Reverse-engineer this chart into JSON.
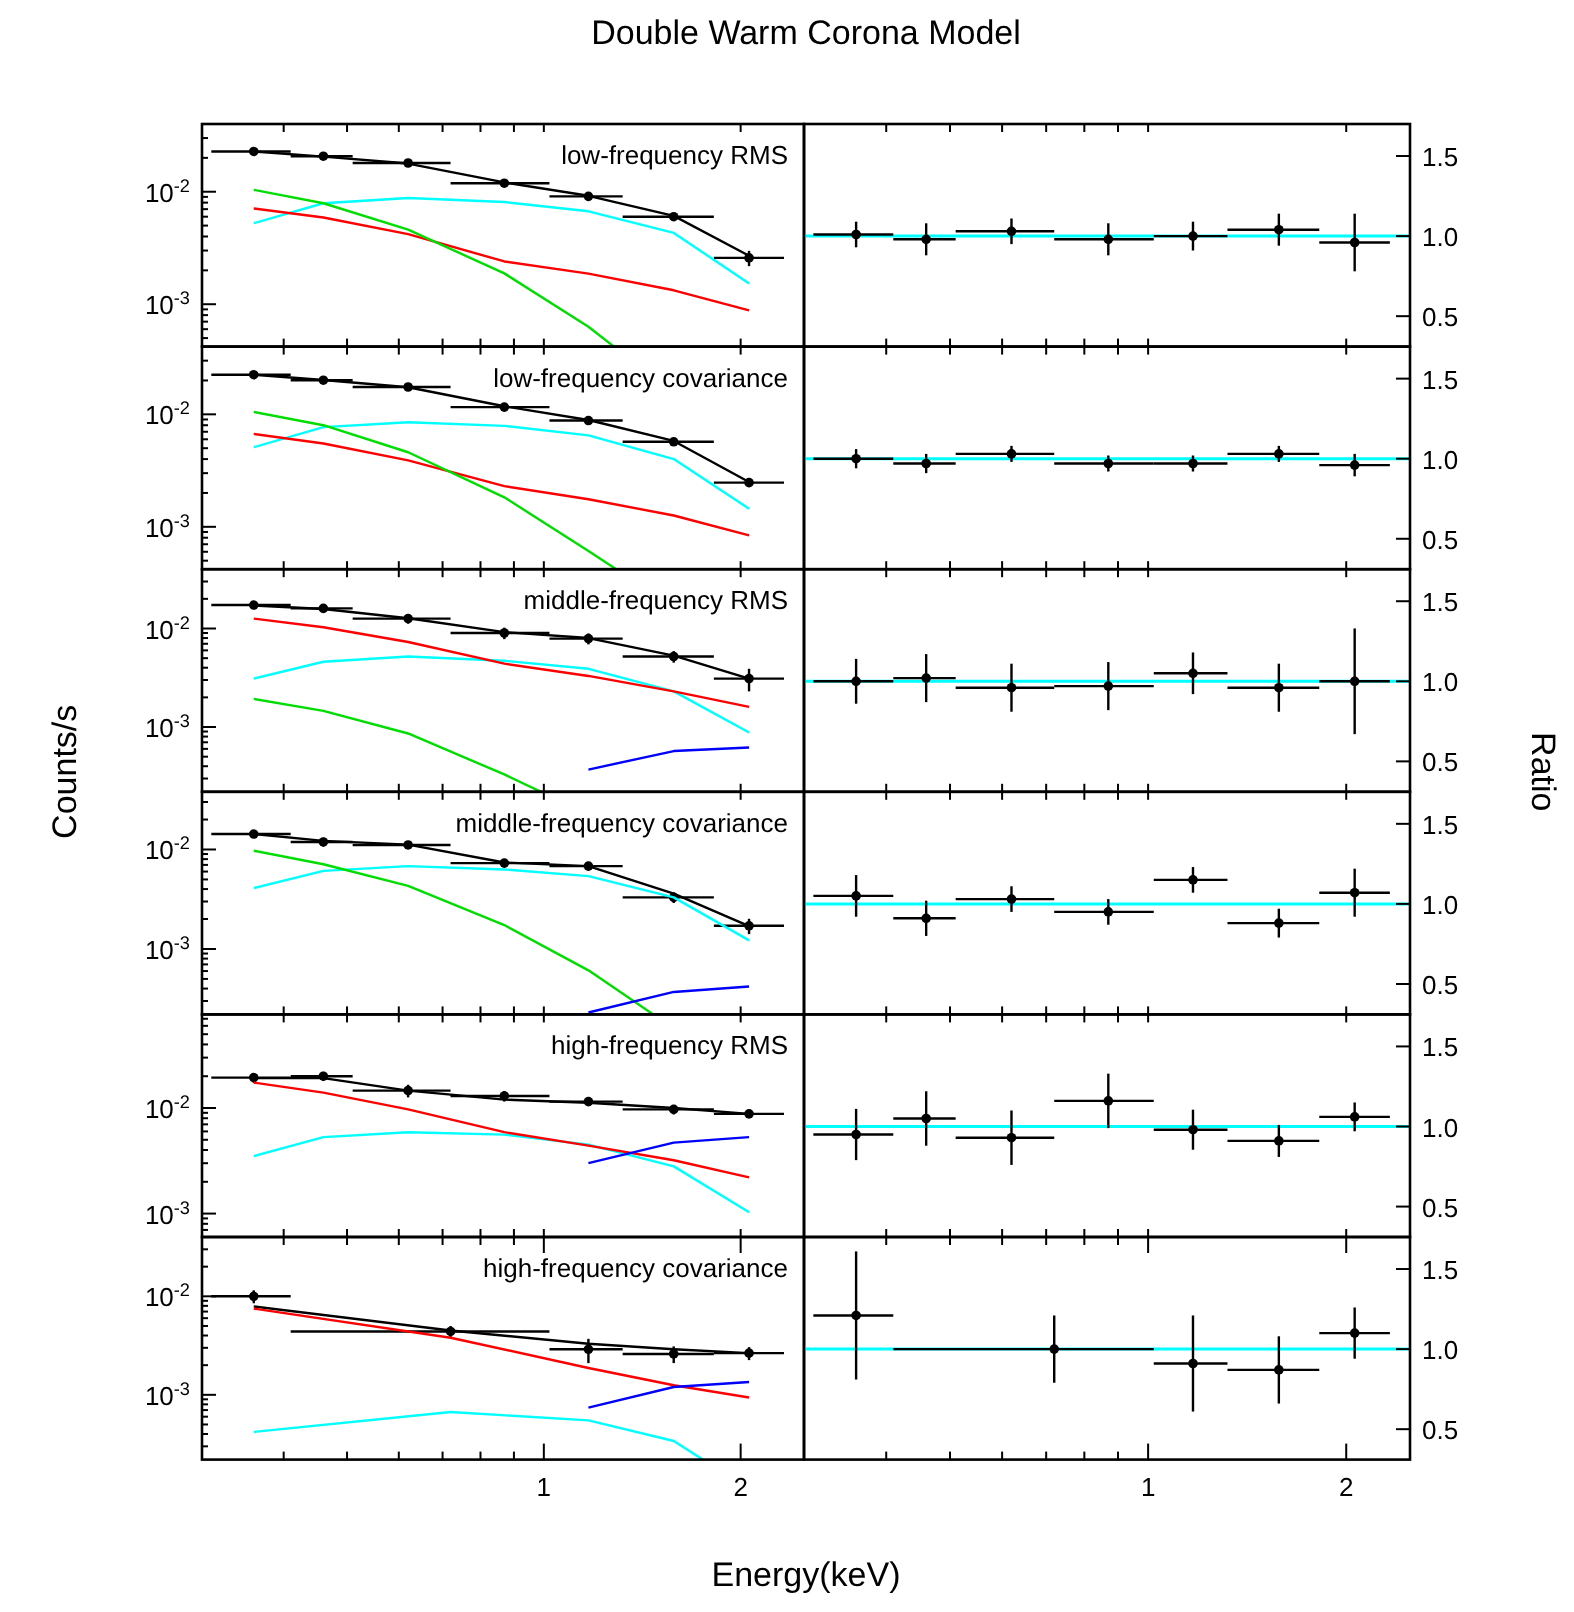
{
  "chart_data": [
    {
      "type": "line",
      "title": "Double Warm Corona Model",
      "annotations": [
        "low-frequency RMS"
      ],
      "log": "xy",
      "tick_labels": "y",
      "x": [
        0.36,
        0.46,
        0.62,
        0.87,
        1.17,
        1.58,
        2.06
      ],
      "xlim": [
        0.3,
        2.5
      ],
      "xticks": [
        {
          "value": 0.4,
          "label": null
        },
        {
          "value": 0.5,
          "label": null
        },
        {
          "value": 0.6,
          "label": null
        },
        {
          "value": 0.7,
          "label": null
        },
        {
          "value": 0.8,
          "label": null
        },
        {
          "value": 0.9,
          "label": null
        },
        {
          "value": 1,
          "label": null
        },
        {
          "value": 2,
          "label": null
        }
      ],
      "ylim": [
        0.00042,
        0.04
      ],
      "yticks": [
        {
          "value": 0.0005,
          "label": null
        },
        {
          "value": 0.0006,
          "label": null
        },
        {
          "value": 0.0007,
          "label": null
        },
        {
          "value": 0.0008,
          "label": null
        },
        {
          "value": 0.0009,
          "label": null
        },
        {
          "value": 0.001,
          "label": "10$^{-3}$"
        },
        {
          "value": 0.002,
          "label": null
        },
        {
          "value": 0.003,
          "label": null
        },
        {
          "value": 0.004,
          "label": null
        },
        {
          "value": 0.005,
          "label": null
        },
        {
          "value": 0.006,
          "label": null
        },
        {
          "value": 0.007,
          "label": null
        },
        {
          "value": 0.008,
          "label": null
        },
        {
          "value": 0.009,
          "label": null
        },
        {
          "value": 0.01,
          "label": "10$^{-2}$"
        },
        {
          "value": 0.02,
          "label": null
        },
        {
          "value": 0.03,
          "label": null
        }
      ],
      "series": [
        {
          "type": "scatter",
          "marker": "circle",
          "color": "#000000",
          "values": [
            0.0228,
            0.0207,
            0.018,
            0.0119,
            0.0091,
            0.006,
            0.00258
          ],
          "errors": [
            0.001,
            0.001,
            0.0008,
            0.0006,
            0.0006,
            0.0004,
            0.0004
          ],
          "xerrors": [
            [
              0.31,
              0.41
            ],
            [
              0.41,
              0.51
            ],
            [
              0.51,
              0.72
            ],
            [
              0.72,
              1.02
            ],
            [
              1.02,
              1.32
            ],
            [
              1.32,
              1.82
            ],
            [
              1.82,
              2.33
            ]
          ]
        },
        {
          "type": "line",
          "color": "#000000",
          "values": [
            0.0228,
            0.0205,
            0.0178,
            0.0121,
            0.0092,
            0.0061,
            0.0027
          ]
        },
        {
          "type": "line",
          "color": "#00ffff",
          "values": [
            0.00525,
            0.0079,
            0.0088,
            0.0081,
            0.0067,
            0.0043,
            0.00153
          ]
        },
        {
          "type": "line",
          "color": "#ff0000",
          "values": [
            0.0071,
            0.0059,
            0.0042,
            0.0024,
            0.00187,
            0.00133,
            0.00088
          ]
        },
        {
          "type": "line",
          "color": "#00dd00",
          "x": [
            0.36,
            0.46,
            0.62,
            0.87,
            1.17,
            1.28
          ],
          "values": [
            0.0104,
            0.0079,
            0.0046,
            0.00188,
            0.00063,
            0.00042
          ]
        }
      ]
    },
    {
      "type": "line",
      "log": "x",
      "tick_labels": "y",
      "x": [
        0.36,
        0.46,
        0.62,
        0.87,
        1.17,
        1.58,
        2.06
      ],
      "xlim": [
        0.3,
        2.5
      ],
      "xticks": [
        {
          "value": 0.4,
          "label": null
        },
        {
          "value": 0.5,
          "label": null
        },
        {
          "value": 0.6,
          "label": null
        },
        {
          "value": 0.7,
          "label": null
        },
        {
          "value": 0.8,
          "label": null
        },
        {
          "value": 0.9,
          "label": null
        },
        {
          "value": 1,
          "label": null
        },
        {
          "value": 2,
          "label": null
        }
      ],
      "ylim": [
        0.31,
        1.7
      ],
      "yticks": [
        {
          "value": 0.5,
          "label": "0.5"
        },
        {
          "value": 1,
          "label": "1.0"
        },
        {
          "value": 1.5,
          "label": "1.5"
        }
      ],
      "ref_lines": [
        {
          "axis": "y",
          "value": 1,
          "color": "#00ffff"
        }
      ],
      "series": [
        {
          "type": "scatter",
          "marker": "circle",
          "color": "#000000",
          "values": [
            1.01,
            0.98,
            1.03,
            0.98,
            1.0,
            1.04,
            0.96
          ],
          "errors": [
            0.08,
            0.1,
            0.08,
            0.1,
            0.09,
            0.1,
            0.18
          ],
          "xerrors": [
            [
              0.31,
              0.41
            ],
            [
              0.41,
              0.51
            ],
            [
              0.51,
              0.72
            ],
            [
              0.72,
              1.02
            ],
            [
              1.02,
              1.32
            ],
            [
              1.32,
              1.82
            ],
            [
              1.82,
              2.33
            ]
          ]
        }
      ]
    },
    {
      "type": "line",
      "annotations": [
        "low-frequency covariance"
      ],
      "log": "xy",
      "tick_labels": "y",
      "x": [
        0.36,
        0.46,
        0.62,
        0.87,
        1.17,
        1.58,
        2.06
      ],
      "xlim": [
        0.3,
        2.5
      ],
      "xticks": [
        {
          "value": 0.4,
          "label": null
        },
        {
          "value": 0.5,
          "label": null
        },
        {
          "value": 0.6,
          "label": null
        },
        {
          "value": 0.7,
          "label": null
        },
        {
          "value": 0.8,
          "label": null
        },
        {
          "value": 0.9,
          "label": null
        },
        {
          "value": 1,
          "label": null
        },
        {
          "value": 2,
          "label": null
        }
      ],
      "ylim": [
        0.00042,
        0.04
      ],
      "yticks": [
        {
          "value": 0.0005,
          "label": null
        },
        {
          "value": 0.0006,
          "label": null
        },
        {
          "value": 0.0007,
          "label": null
        },
        {
          "value": 0.0008,
          "label": null
        },
        {
          "value": 0.0009,
          "label": null
        },
        {
          "value": 0.001,
          "label": "10$^{-3}$"
        },
        {
          "value": 0.002,
          "label": null
        },
        {
          "value": 0.003,
          "label": null
        },
        {
          "value": 0.004,
          "label": null
        },
        {
          "value": 0.005,
          "label": null
        },
        {
          "value": 0.006,
          "label": null
        },
        {
          "value": 0.007,
          "label": null
        },
        {
          "value": 0.008,
          "label": null
        },
        {
          "value": 0.009,
          "label": null
        },
        {
          "value": 0.01,
          "label": "10$^{-2}$"
        },
        {
          "value": 0.02,
          "label": null
        },
        {
          "value": 0.03,
          "label": null
        }
      ],
      "series": [
        {
          "type": "scatter",
          "marker": "circle",
          "color": "#000000",
          "values": [
            0.0225,
            0.0201,
            0.0175,
            0.0116,
            0.0088,
            0.0057,
            0.00247
          ],
          "errors": [
            0.001,
            0.0009,
            0.0008,
            0.0006,
            0.0005,
            0.0004,
            0.0002
          ],
          "xerrors": [
            [
              0.31,
              0.41
            ],
            [
              0.41,
              0.51
            ],
            [
              0.51,
              0.72
            ],
            [
              0.72,
              1.02
            ],
            [
              1.02,
              1.32
            ],
            [
              1.32,
              1.82
            ],
            [
              1.82,
              2.33
            ]
          ]
        },
        {
          "type": "line",
          "color": "#000000",
          "values": [
            0.0225,
            0.0202,
            0.0174,
            0.0118,
            0.0089,
            0.0058,
            0.0025
          ]
        },
        {
          "type": "line",
          "color": "#00ffff",
          "values": [
            0.0051,
            0.0077,
            0.0085,
            0.0079,
            0.0065,
            0.004,
            0.00145
          ]
        },
        {
          "type": "line",
          "color": "#ff0000",
          "values": [
            0.0067,
            0.0055,
            0.0039,
            0.0023,
            0.00176,
            0.00126,
            0.00084
          ]
        },
        {
          "type": "line",
          "color": "#00dd00",
          "x": [
            0.36,
            0.46,
            0.62,
            0.87,
            1.17,
            1.29
          ],
          "values": [
            0.0105,
            0.008,
            0.0046,
            0.00183,
            0.00061,
            0.00042
          ]
        }
      ]
    },
    {
      "type": "line",
      "log": "x",
      "tick_labels": "y",
      "x": [
        0.36,
        0.46,
        0.62,
        0.87,
        1.17,
        1.58,
        2.06
      ],
      "xlim": [
        0.3,
        2.5
      ],
      "xticks": [
        {
          "value": 0.4,
          "label": null
        },
        {
          "value": 0.5,
          "label": null
        },
        {
          "value": 0.6,
          "label": null
        },
        {
          "value": 0.7,
          "label": null
        },
        {
          "value": 0.8,
          "label": null
        },
        {
          "value": 0.9,
          "label": null
        },
        {
          "value": 1,
          "label": null
        },
        {
          "value": 2,
          "label": null
        }
      ],
      "ylim": [
        0.31,
        1.7
      ],
      "yticks": [
        {
          "value": 0.5,
          "label": "0.5"
        },
        {
          "value": 1,
          "label": "1.0"
        },
        {
          "value": 1.5,
          "label": "1.5"
        }
      ],
      "ref_lines": [
        {
          "axis": "y",
          "value": 1,
          "color": "#00ffff"
        }
      ],
      "series": [
        {
          "type": "scatter",
          "marker": "circle",
          "color": "#000000",
          "values": [
            1.0,
            0.97,
            1.03,
            0.97,
            0.97,
            1.03,
            0.96
          ],
          "errors": [
            0.06,
            0.06,
            0.05,
            0.05,
            0.05,
            0.05,
            0.07
          ],
          "xerrors": [
            [
              0.31,
              0.41
            ],
            [
              0.41,
              0.51
            ],
            [
              0.51,
              0.72
            ],
            [
              0.72,
              1.02
            ],
            [
              1.02,
              1.32
            ],
            [
              1.32,
              1.82
            ],
            [
              1.82,
              2.33
            ]
          ]
        }
      ]
    },
    {
      "type": "line",
      "ylabel": "Counts/s",
      "annotations": [
        "middle-frequency RMS"
      ],
      "log": "xy",
      "tick_labels": "y",
      "x": [
        0.36,
        0.46,
        0.62,
        0.87,
        1.17,
        1.58,
        2.06
      ],
      "xlim": [
        0.3,
        2.5
      ],
      "xticks": [
        {
          "value": 0.4,
          "label": null
        },
        {
          "value": 0.5,
          "label": null
        },
        {
          "value": 0.6,
          "label": null
        },
        {
          "value": 0.7,
          "label": null
        },
        {
          "value": 0.8,
          "label": null
        },
        {
          "value": 0.9,
          "label": null
        },
        {
          "value": 1,
          "label": null
        },
        {
          "value": 2,
          "label": null
        }
      ],
      "ylim": [
        0.00022,
        0.04
      ],
      "yticks": [
        {
          "value": 0.0003,
          "label": null
        },
        {
          "value": 0.0004,
          "label": null
        },
        {
          "value": 0.0005,
          "label": null
        },
        {
          "value": 0.0006,
          "label": null
        },
        {
          "value": 0.0007,
          "label": null
        },
        {
          "value": 0.0008,
          "label": null
        },
        {
          "value": 0.0009,
          "label": null
        },
        {
          "value": 0.001,
          "label": "10$^{-3}$"
        },
        {
          "value": 0.002,
          "label": null
        },
        {
          "value": 0.003,
          "label": null
        },
        {
          "value": 0.004,
          "label": null
        },
        {
          "value": 0.005,
          "label": null
        },
        {
          "value": 0.006,
          "label": null
        },
        {
          "value": 0.007,
          "label": null
        },
        {
          "value": 0.008,
          "label": null
        },
        {
          "value": 0.009,
          "label": null
        },
        {
          "value": 0.01,
          "label": "10$^{-2}$"
        },
        {
          "value": 0.02,
          "label": null
        },
        {
          "value": 0.03,
          "label": null
        }
      ],
      "series": [
        {
          "type": "scatter",
          "marker": "circle",
          "color": "#000000",
          "values": [
            0.0173,
            0.016,
            0.0126,
            0.009,
            0.0079,
            0.0052,
            0.0031
          ],
          "errors": [
            0.0015,
            0.0015,
            0.0014,
            0.0012,
            0.001,
            0.0007,
            0.0008
          ],
          "xerrors": [
            [
              0.31,
              0.41
            ],
            [
              0.41,
              0.51
            ],
            [
              0.51,
              0.72
            ],
            [
              0.72,
              1.02
            ],
            [
              1.02,
              1.32
            ],
            [
              1.32,
              1.82
            ],
            [
              1.82,
              2.33
            ]
          ]
        },
        {
          "type": "line",
          "color": "#000000",
          "values": [
            0.0171,
            0.0158,
            0.0127,
            0.0092,
            0.008,
            0.0053,
            0.0031
          ]
        },
        {
          "type": "line",
          "color": "#00ffff",
          "values": [
            0.0031,
            0.0046,
            0.0052,
            0.0047,
            0.0039,
            0.0023,
            0.00088
          ]
        },
        {
          "type": "line",
          "color": "#ff0000",
          "values": [
            0.0126,
            0.0103,
            0.0073,
            0.0044,
            0.0033,
            0.0023,
            0.0016
          ]
        },
        {
          "type": "line",
          "color": "#00dd00",
          "x": [
            0.36,
            0.46,
            0.62,
            0.87,
            0.99
          ],
          "values": [
            0.00193,
            0.00146,
            0.00086,
            0.00033,
            0.00022
          ]
        },
        {
          "type": "line",
          "color": "#0000ff",
          "x": [
            1.17,
            1.58,
            2.06
          ],
          "values": [
            0.00037,
            0.00057,
            0.00062
          ]
        }
      ]
    },
    {
      "type": "line",
      "log": "x",
      "tick_labels": "y",
      "x": [
        0.36,
        0.46,
        0.62,
        0.87,
        1.17,
        1.58,
        2.06
      ],
      "xlim": [
        0.3,
        2.5
      ],
      "xticks": [
        {
          "value": 0.4,
          "label": null
        },
        {
          "value": 0.5,
          "label": null
        },
        {
          "value": 0.6,
          "label": null
        },
        {
          "value": 0.7,
          "label": null
        },
        {
          "value": 0.8,
          "label": null
        },
        {
          "value": 0.9,
          "label": null
        },
        {
          "value": 1,
          "label": null
        },
        {
          "value": 2,
          "label": null
        }
      ],
      "ylim": [
        0.31,
        1.7
      ],
      "yticks": [
        {
          "value": 0.5,
          "label": "0.5"
        },
        {
          "value": 1,
          "label": "1.0"
        },
        {
          "value": 1.5,
          "label": "1.5"
        }
      ],
      "ylabel": "Ratio",
      "ref_lines": [
        {
          "axis": "y",
          "value": 1,
          "color": "#00ffff"
        }
      ],
      "series": [
        {
          "type": "scatter",
          "marker": "circle",
          "color": "#000000",
          "values": [
            1.0,
            1.02,
            0.96,
            0.97,
            1.05,
            0.96,
            1.0
          ],
          "errors": [
            0.14,
            0.15,
            0.15,
            0.15,
            0.13,
            0.15,
            0.33
          ],
          "xerrors": [
            [
              0.31,
              0.41
            ],
            [
              0.41,
              0.51
            ],
            [
              0.51,
              0.72
            ],
            [
              0.72,
              1.02
            ],
            [
              1.02,
              1.32
            ],
            [
              1.32,
              1.82
            ],
            [
              1.82,
              2.33
            ]
          ]
        }
      ]
    },
    {
      "type": "line",
      "annotations": [
        "middle-frequency covariance"
      ],
      "log": "xy",
      "tick_labels": "y",
      "x": [
        0.36,
        0.46,
        0.62,
        0.87,
        1.17,
        1.58,
        2.06
      ],
      "xlim": [
        0.3,
        2.5
      ],
      "xticks": [
        {
          "value": 0.4,
          "label": null
        },
        {
          "value": 0.5,
          "label": null
        },
        {
          "value": 0.6,
          "label": null
        },
        {
          "value": 0.7,
          "label": null
        },
        {
          "value": 0.8,
          "label": null
        },
        {
          "value": 0.9,
          "label": null
        },
        {
          "value": 1,
          "label": null
        },
        {
          "value": 2,
          "label": null
        }
      ],
      "ylim": [
        0.00022,
        0.038
      ],
      "yticks": [
        {
          "value": 0.0003,
          "label": null
        },
        {
          "value": 0.0004,
          "label": null
        },
        {
          "value": 0.0005,
          "label": null
        },
        {
          "value": 0.0006,
          "label": null
        },
        {
          "value": 0.0007,
          "label": null
        },
        {
          "value": 0.0008,
          "label": null
        },
        {
          "value": 0.0009,
          "label": null
        },
        {
          "value": 0.001,
          "label": "10$^{-3}$"
        },
        {
          "value": 0.002,
          "label": null
        },
        {
          "value": 0.003,
          "label": null
        },
        {
          "value": 0.004,
          "label": null
        },
        {
          "value": 0.005,
          "label": null
        },
        {
          "value": 0.006,
          "label": null
        },
        {
          "value": 0.007,
          "label": null
        },
        {
          "value": 0.008,
          "label": null
        },
        {
          "value": 0.009,
          "label": null
        },
        {
          "value": 0.01,
          "label": "10$^{-2}$"
        },
        {
          "value": 0.02,
          "label": null
        },
        {
          "value": 0.03,
          "label": null
        }
      ],
      "series": [
        {
          "type": "scatter",
          "marker": "circle",
          "color": "#000000",
          "values": [
            0.0143,
            0.0119,
            0.0111,
            0.0073,
            0.0068,
            0.0033,
            0.00171
          ],
          "errors": [
            0.0012,
            0.0012,
            0.0008,
            0.0006,
            0.0006,
            0.0004,
            0.0003
          ],
          "xerrors": [
            [
              0.31,
              0.41
            ],
            [
              0.41,
              0.51
            ],
            [
              0.51,
              0.72
            ],
            [
              0.72,
              1.02
            ],
            [
              1.02,
              1.32
            ],
            [
              1.32,
              1.82
            ],
            [
              1.82,
              2.33
            ]
          ]
        },
        {
          "type": "line",
          "color": "#000000",
          "values": [
            0.0143,
            0.0122,
            0.0112,
            0.0074,
            0.0068,
            0.0036,
            0.0017
          ]
        },
        {
          "type": "line",
          "color": "#00ffff",
          "values": [
            0.0041,
            0.0061,
            0.0068,
            0.0063,
            0.0054,
            0.0033,
            0.00122
          ]
        },
        {
          "type": "line",
          "color": "#00dd00",
          "x": [
            0.36,
            0.46,
            0.62,
            0.87,
            1.17,
            1.47
          ],
          "values": [
            0.0097,
            0.0071,
            0.0043,
            0.00174,
            0.00061,
            0.00022
          ]
        },
        {
          "type": "line",
          "color": "#0000ff",
          "x": [
            1.17,
            1.58,
            2.06
          ],
          "values": [
            0.00023,
            0.00037,
            0.00042
          ]
        }
      ]
    },
    {
      "type": "line",
      "log": "x",
      "tick_labels": "y",
      "x": [
        0.36,
        0.46,
        0.62,
        0.87,
        1.17,
        1.58,
        2.06
      ],
      "xlim": [
        0.3,
        2.5
      ],
      "xticks": [
        {
          "value": 0.4,
          "label": null
        },
        {
          "value": 0.5,
          "label": null
        },
        {
          "value": 0.6,
          "label": null
        },
        {
          "value": 0.7,
          "label": null
        },
        {
          "value": 0.8,
          "label": null
        },
        {
          "value": 0.9,
          "label": null
        },
        {
          "value": 1,
          "label": null
        },
        {
          "value": 2,
          "label": null
        }
      ],
      "ylim": [
        0.31,
        1.7
      ],
      "yticks": [
        {
          "value": 0.5,
          "label": "0.5"
        },
        {
          "value": 1,
          "label": "1.0"
        },
        {
          "value": 1.5,
          "label": "1.5"
        }
      ],
      "ref_lines": [
        {
          "axis": "y",
          "value": 1,
          "color": "#00ffff"
        }
      ],
      "series": [
        {
          "type": "scatter",
          "marker": "circle",
          "color": "#000000",
          "values": [
            1.05,
            0.91,
            1.03,
            0.95,
            1.15,
            0.88,
            1.07
          ],
          "errors": [
            0.13,
            0.11,
            0.08,
            0.08,
            0.08,
            0.09,
            0.15
          ],
          "xerrors": [
            [
              0.31,
              0.41
            ],
            [
              0.41,
              0.51
            ],
            [
              0.51,
              0.72
            ],
            [
              0.72,
              1.02
            ],
            [
              1.02,
              1.32
            ],
            [
              1.32,
              1.82
            ],
            [
              1.82,
              2.33
            ]
          ]
        }
      ]
    },
    {
      "type": "line",
      "annotations": [
        "high-frequency RMS"
      ],
      "log": "xy",
      "tick_labels": "y",
      "x": [
        0.36,
        0.46,
        0.62,
        0.87,
        1.17,
        1.58,
        2.06
      ],
      "xlim": [
        0.3,
        2.5
      ],
      "xticks": [
        {
          "value": 0.4,
          "label": null
        },
        {
          "value": 0.5,
          "label": null
        },
        {
          "value": 0.6,
          "label": null
        },
        {
          "value": 0.7,
          "label": null
        },
        {
          "value": 0.8,
          "label": null
        },
        {
          "value": 0.9,
          "label": null
        },
        {
          "value": 1,
          "label": null
        },
        {
          "value": 2,
          "label": null
        }
      ],
      "ylim": [
        0.0006,
        0.077
      ],
      "yticks": [
        {
          "value": 0.0007,
          "label": null
        },
        {
          "value": 0.0008,
          "label": null
        },
        {
          "value": 0.0009,
          "label": null
        },
        {
          "value": 0.001,
          "label": "10$^{-3}$"
        },
        {
          "value": 0.002,
          "label": null
        },
        {
          "value": 0.003,
          "label": null
        },
        {
          "value": 0.004,
          "label": null
        },
        {
          "value": 0.005,
          "label": null
        },
        {
          "value": 0.006,
          "label": null
        },
        {
          "value": 0.007,
          "label": null
        },
        {
          "value": 0.008,
          "label": null
        },
        {
          "value": 0.009,
          "label": null
        },
        {
          "value": 0.01,
          "label": "10$^{-2}$"
        },
        {
          "value": 0.02,
          "label": null
        },
        {
          "value": 0.03,
          "label": null
        },
        {
          "value": 0.04,
          "label": null
        },
        {
          "value": 0.05,
          "label": null
        },
        {
          "value": 0.06,
          "label": null
        },
        {
          "value": 0.07,
          "label": null
        }
      ],
      "series": [
        {
          "type": "scatter",
          "marker": "circle",
          "color": "#000000",
          "values": [
            0.0194,
            0.02,
            0.0146,
            0.013,
            0.0115,
            0.0097,
            0.0088
          ],
          "errors": [
            0.002,
            0.002,
            0.002,
            0.0015,
            0.001,
            0.001,
            0.0006
          ],
          "xerrors": [
            [
              0.31,
              0.41
            ],
            [
              0.41,
              0.51
            ],
            [
              0.51,
              0.72
            ],
            [
              0.72,
              1.02
            ],
            [
              1.02,
              1.32
            ],
            [
              1.32,
              1.82
            ],
            [
              1.82,
              2.33
            ]
          ]
        },
        {
          "type": "line",
          "color": "#000000",
          "values": [
            0.0192,
            0.0192,
            0.0146,
            0.012,
            0.0112,
            0.01,
            0.0088
          ]
        },
        {
          "type": "line",
          "color": "#00ffff",
          "values": [
            0.0035,
            0.0053,
            0.0059,
            0.0056,
            0.0045,
            0.0028,
            0.00103
          ]
        },
        {
          "type": "line",
          "color": "#ff0000",
          "values": [
            0.0174,
            0.014,
            0.0097,
            0.0059,
            0.0044,
            0.0032,
            0.0022
          ]
        },
        {
          "type": "line",
          "color": "#0000ff",
          "x": [
            1.17,
            1.58,
            2.06
          ],
          "values": [
            0.003,
            0.0047,
            0.0053
          ]
        }
      ]
    },
    {
      "type": "line",
      "log": "x",
      "tick_labels": "y",
      "x": [
        0.36,
        0.46,
        0.62,
        0.87,
        1.17,
        1.58,
        2.06
      ],
      "xlim": [
        0.3,
        2.5
      ],
      "xticks": [
        {
          "value": 0.4,
          "label": null
        },
        {
          "value": 0.5,
          "label": null
        },
        {
          "value": 0.6,
          "label": null
        },
        {
          "value": 0.7,
          "label": null
        },
        {
          "value": 0.8,
          "label": null
        },
        {
          "value": 0.9,
          "label": null
        },
        {
          "value": 1,
          "label": null
        },
        {
          "value": 2,
          "label": null
        }
      ],
      "ylim": [
        0.31,
        1.7
      ],
      "yticks": [
        {
          "value": 0.5,
          "label": "0.5"
        },
        {
          "value": 1,
          "label": "1.0"
        },
        {
          "value": 1.5,
          "label": "1.5"
        }
      ],
      "ref_lines": [
        {
          "axis": "y",
          "value": 1,
          "color": "#00ffff"
        }
      ],
      "series": [
        {
          "type": "scatter",
          "marker": "circle",
          "color": "#000000",
          "values": [
            0.95,
            1.05,
            0.93,
            1.16,
            0.98,
            0.91,
            1.06
          ],
          "errors": [
            0.16,
            0.17,
            0.17,
            0.17,
            0.125,
            0.1,
            0.09
          ],
          "xerrors": [
            [
              0.31,
              0.41
            ],
            [
              0.41,
              0.51
            ],
            [
              0.51,
              0.72
            ],
            [
              0.72,
              1.02
            ],
            [
              1.02,
              1.32
            ],
            [
              1.32,
              1.82
            ],
            [
              1.82,
              2.33
            ]
          ]
        }
      ]
    },
    {
      "type": "line",
      "xlabel": "Energy(keV)",
      "annotations": [
        "high-frequency covariance"
      ],
      "log": "xy",
      "x": [
        0.36,
        0.72,
        1.17,
        1.58,
        2.06
      ],
      "xlim": [
        0.3,
        2.5
      ],
      "xticks": [
        {
          "value": 0.4,
          "label": null
        },
        {
          "value": 0.5,
          "label": null
        },
        {
          "value": 0.6,
          "label": null
        },
        {
          "value": 0.7,
          "label": null
        },
        {
          "value": 0.8,
          "label": null
        },
        {
          "value": 0.9,
          "label": null
        },
        {
          "value": 1,
          "label": "1"
        },
        {
          "value": 2,
          "label": "2"
        }
      ],
      "ylim": [
        0.00022,
        0.04
      ],
      "yticks": [
        {
          "value": 0.0003,
          "label": null
        },
        {
          "value": 0.0004,
          "label": null
        },
        {
          "value": 0.0005,
          "label": null
        },
        {
          "value": 0.0006,
          "label": null
        },
        {
          "value": 0.0007,
          "label": null
        },
        {
          "value": 0.0008,
          "label": null
        },
        {
          "value": 0.0009,
          "label": null
        },
        {
          "value": 0.001,
          "label": "10$^{-3}$"
        },
        {
          "value": 0.002,
          "label": null
        },
        {
          "value": 0.003,
          "label": null
        },
        {
          "value": 0.004,
          "label": null
        },
        {
          "value": 0.005,
          "label": null
        },
        {
          "value": 0.006,
          "label": null
        },
        {
          "value": 0.007,
          "label": null
        },
        {
          "value": 0.008,
          "label": null
        },
        {
          "value": 0.009,
          "label": null
        },
        {
          "value": 0.01,
          "label": "10$^{-2}$"
        },
        {
          "value": 0.02,
          "label": null
        },
        {
          "value": 0.03,
          "label": null
        }
      ],
      "series": [
        {
          "type": "scatter",
          "marker": "circle",
          "color": "#000000",
          "values": [
            0.01,
            0.0044,
            0.0029,
            0.0026,
            0.00265
          ],
          "errors": [
            0.0015,
            0.0006,
            0.0008,
            0.0005,
            0.0004
          ],
          "xerrors": [
            [
              0.31,
              0.41
            ],
            [
              0.41,
              1.02
            ],
            [
              1.02,
              1.32
            ],
            [
              1.32,
              1.82
            ],
            [
              1.82,
              2.33
            ]
          ]
        },
        {
          "type": "line",
          "color": "#000000",
          "values": [
            0.0079,
            0.0045,
            0.0033,
            0.0029,
            0.00265
          ]
        },
        {
          "type": "line",
          "color": "#ff0000",
          "values": [
            0.0075,
            0.0038,
            0.00187,
            0.00125,
            0.00094
          ]
        },
        {
          "type": "line",
          "color": "#00ffff",
          "x": [
            0.36,
            0.72,
            1.17,
            1.58,
            1.75
          ],
          "values": [
            0.00042,
            0.00067,
            0.00055,
            0.00034,
            0.00022
          ]
        },
        {
          "type": "line",
          "color": "#0000ff",
          "x": [
            1.17,
            1.58,
            2.06
          ],
          "values": [
            0.00074,
            0.0012,
            0.00135
          ]
        }
      ]
    },
    {
      "type": "line",
      "log": "x",
      "x": [
        0.36,
        0.72,
        1.17,
        1.58,
        2.06
      ],
      "xlim": [
        0.3,
        2.5
      ],
      "xticks": [
        {
          "value": 0.4,
          "label": null
        },
        {
          "value": 0.5,
          "label": null
        },
        {
          "value": 0.6,
          "label": null
        },
        {
          "value": 0.7,
          "label": null
        },
        {
          "value": 0.8,
          "label": null
        },
        {
          "value": 0.9,
          "label": null
        },
        {
          "value": 1,
          "label": "1"
        },
        {
          "value": 2,
          "label": "2"
        }
      ],
      "ylim": [
        0.31,
        1.7
      ],
      "yticks": [
        {
          "value": 0.5,
          "label": "0.5"
        },
        {
          "value": 1,
          "label": "1.0"
        },
        {
          "value": 1.5,
          "label": "1.5"
        }
      ],
      "ref_lines": [
        {
          "axis": "y",
          "value": 1,
          "color": "#00ffff"
        }
      ],
      "series": [
        {
          "type": "scatter",
          "marker": "circle",
          "color": "#000000",
          "values": [
            1.21,
            1.0,
            0.91,
            0.87,
            1.1
          ],
          "errors": [
            0.4,
            0.21,
            0.3,
            0.21,
            0.16
          ],
          "xerrors": [
            [
              0.31,
              0.41
            ],
            [
              0.41,
              1.02
            ],
            [
              1.02,
              1.32
            ],
            [
              1.32,
              1.82
            ],
            [
              1.82,
              2.33
            ]
          ]
        }
      ]
    }
  ]
}
